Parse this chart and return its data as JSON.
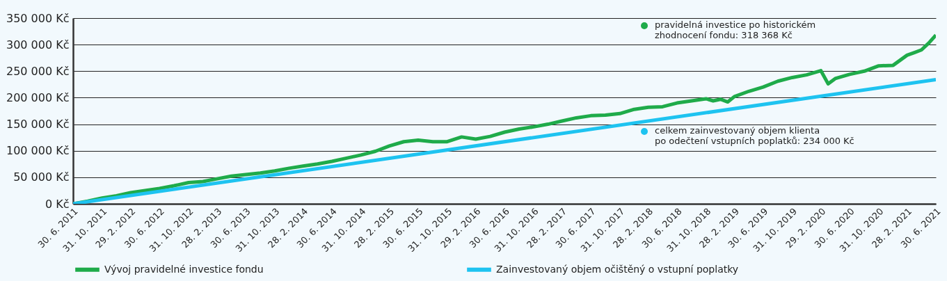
{
  "chart_data": {
    "type": "line",
    "annotations": [
      "pravidelná investice po historickém\nzhodnocení fondu: 318 368 Kč",
      "celkem zainvestovaný objem klienta\npo odečtení vstupních poplatků: 234 000 Kč"
    ],
    "xlim": [
      "2011-06-30",
      "2021-06-30"
    ],
    "xticks": [
      {
        "value": "2011-06-30",
        "label": "30. 6. 2011"
      },
      {
        "value": "2011-10-31",
        "label": "31. 10. 2011"
      },
      {
        "value": "2012-02-29",
        "label": "29. 2. 2012"
      },
      {
        "value": "2012-06-30",
        "label": "30. 6. 2012"
      },
      {
        "value": "2012-10-31",
        "label": "31. 10. 2012"
      },
      {
        "value": "2013-02-28",
        "label": "28. 2. 2013"
      },
      {
        "value": "2013-06-30",
        "label": "30. 6. 2013"
      },
      {
        "value": "2013-10-31",
        "label": "31. 10. 2013"
      },
      {
        "value": "2014-02-28",
        "label": "28. 2. 2014"
      },
      {
        "value": "2014-06-30",
        "label": "30. 6. 2014"
      },
      {
        "value": "2014-10-31",
        "label": "31. 10. 2014"
      },
      {
        "value": "2015-02-28",
        "label": "28. 2. 2015"
      },
      {
        "value": "2015-06-30",
        "label": "30. 6. 2015"
      },
      {
        "value": "2015-10-31",
        "label": "31. 10. 2015"
      },
      {
        "value": "2016-02-29",
        "label": "29. 2. 2016"
      },
      {
        "value": "2016-06-30",
        "label": "30. 6. 2016"
      },
      {
        "value": "2016-10-31",
        "label": "31. 10. 2016"
      },
      {
        "value": "2017-02-28",
        "label": "28. 2. 2017"
      },
      {
        "value": "2017-06-30",
        "label": "30. 6. 2017"
      },
      {
        "value": "2017-10-31",
        "label": "31. 10. 2017"
      },
      {
        "value": "2018-02-28",
        "label": "28. 2. 2018"
      },
      {
        "value": "2018-06-30",
        "label": "30. 6. 2018"
      },
      {
        "value": "2018-10-31",
        "label": "31. 10. 2018"
      },
      {
        "value": "2019-02-28",
        "label": "28. 2. 2019"
      },
      {
        "value": "2019-06-30",
        "label": "30. 6. 2019"
      },
      {
        "value": "2019-10-31",
        "label": "31. 10. 2019"
      },
      {
        "value": "2020-02-29",
        "label": "29. 2. 2020"
      },
      {
        "value": "2020-06-30",
        "label": "30. 6. 2020"
      },
      {
        "value": "2020-10-31",
        "label": "31. 10. 2020"
      },
      {
        "value": "2021-02-28",
        "label": "28. 2. 2021"
      },
      {
        "value": "2021-06-30",
        "label": "30. 6. 2021"
      }
    ],
    "ylim": [
      0,
      350000
    ],
    "yticks": [
      {
        "value": 0,
        "label": "0 Kč"
      },
      {
        "value": 50000,
        "label": "50 000 Kč"
      },
      {
        "value": 100000,
        "label": "100 000 Kč"
      },
      {
        "value": 150000,
        "label": "150 000 Kč"
      },
      {
        "value": 200000,
        "label": "200 000 Kč"
      },
      {
        "value": 250000,
        "label": "250 000 Kč"
      },
      {
        "value": 300000,
        "label": "300 000 Kč"
      },
      {
        "value": 350000,
        "label": "350 000 Kč"
      }
    ],
    "grid": "y",
    "legend": "bottom",
    "series": [
      {
        "name": "Vývoj pravidelné investice fondu",
        "color": "#1fab4a",
        "x": [
          "2011-06-30",
          "2011-08-31",
          "2011-10-31",
          "2011-12-31",
          "2012-02-29",
          "2012-04-30",
          "2012-06-30",
          "2012-08-31",
          "2012-10-31",
          "2012-12-31",
          "2013-02-28",
          "2013-04-30",
          "2013-06-30",
          "2013-08-31",
          "2013-10-31",
          "2013-12-31",
          "2014-02-28",
          "2014-04-30",
          "2014-06-30",
          "2014-08-31",
          "2014-10-31",
          "2014-12-31",
          "2015-02-28",
          "2015-04-30",
          "2015-06-30",
          "2015-08-31",
          "2015-10-31",
          "2015-12-31",
          "2016-02-29",
          "2016-04-30",
          "2016-06-30",
          "2016-08-31",
          "2016-10-31",
          "2016-12-31",
          "2017-02-28",
          "2017-04-30",
          "2017-06-30",
          "2017-08-31",
          "2017-10-31",
          "2017-12-31",
          "2018-02-28",
          "2018-04-30",
          "2018-06-30",
          "2018-08-31",
          "2018-10-31",
          "2018-11-30",
          "2018-12-31",
          "2019-01-31",
          "2019-02-28",
          "2019-04-30",
          "2019-06-30",
          "2019-08-31",
          "2019-10-31",
          "2019-12-31",
          "2020-02-29",
          "2020-03-31",
          "2020-04-30",
          "2020-06-30",
          "2020-08-31",
          "2020-10-31",
          "2020-12-31",
          "2021-02-28",
          "2021-03-31",
          "2021-04-30",
          "2021-05-31",
          "2021-06-30"
        ],
        "values": [
          0,
          5000,
          11000,
          15000,
          21000,
          25000,
          29000,
          34000,
          40000,
          42000,
          47000,
          52000,
          55000,
          58000,
          62000,
          67000,
          71000,
          75000,
          80000,
          86000,
          92000,
          99000,
          109000,
          117000,
          120000,
          117000,
          117000,
          126000,
          122000,
          127000,
          135000,
          141000,
          145000,
          150000,
          156000,
          162000,
          166000,
          167000,
          170000,
          178000,
          182000,
          183000,
          190000,
          194000,
          198000,
          194000,
          197000,
          192000,
          202000,
          212000,
          220000,
          231000,
          238000,
          243000,
          251000,
          226000,
          236000,
          244000,
          250000,
          260000,
          261000,
          280000,
          285000,
          290000,
          303000,
          318000
        ]
      },
      {
        "name": "Zainvestovaný objem očištěný o vstupní poplatky",
        "color": "#1ec3f0",
        "x": [
          "2011-06-30",
          "2021-06-30"
        ],
        "values": [
          0,
          234000
        ]
      }
    ]
  }
}
